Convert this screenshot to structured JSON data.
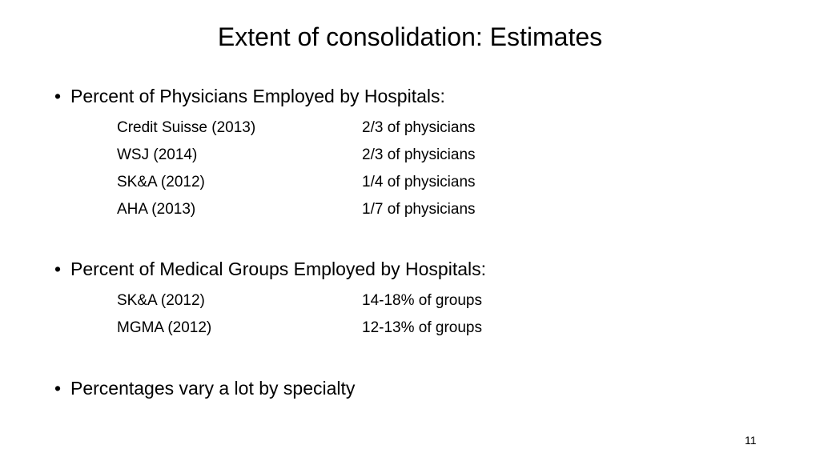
{
  "slide": {
    "title": "Extent of consolidation: Estimates",
    "bullet_glyph": "•",
    "sections": [
      {
        "heading": "Percent of Physicians Employed by Hospitals:",
        "rows": [
          {
            "source": "Credit Suisse (2013)",
            "value": "2/3 of physicians"
          },
          {
            "source": "WSJ (2014)",
            "value": "2/3 of physicians"
          },
          {
            "source": "SK&A (2012)",
            "value": "1/4 of physicians"
          },
          {
            "source": "AHA (2013)",
            "value": "1/7 of physicians"
          }
        ]
      },
      {
        "heading": "Percent of Medical Groups Employed by Hospitals:",
        "rows": [
          {
            "source": "SK&A (2012)",
            "value": "14-18% of groups"
          },
          {
            "source": "MGMA (2012)",
            "value": "12-13% of groups"
          }
        ]
      },
      {
        "heading": "Percentages vary a lot by specialty",
        "rows": []
      }
    ],
    "page_number": "11"
  }
}
